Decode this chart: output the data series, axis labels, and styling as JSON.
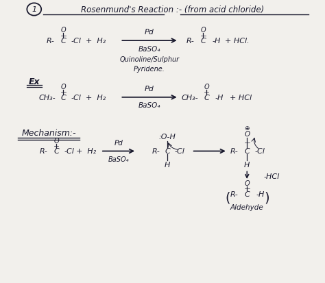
{
  "paper_color": "#f2f0ec",
  "font_color": "#1a1a2e",
  "line_color": "#1a1a2e",
  "title": "Rosenmund's Reaction :- (from acid chloride)",
  "ex_label": "Ex",
  "mech_label": "Mechanism:-",
  "mech_hcl": "-HCl",
  "aldehyde": "Aldehyde"
}
